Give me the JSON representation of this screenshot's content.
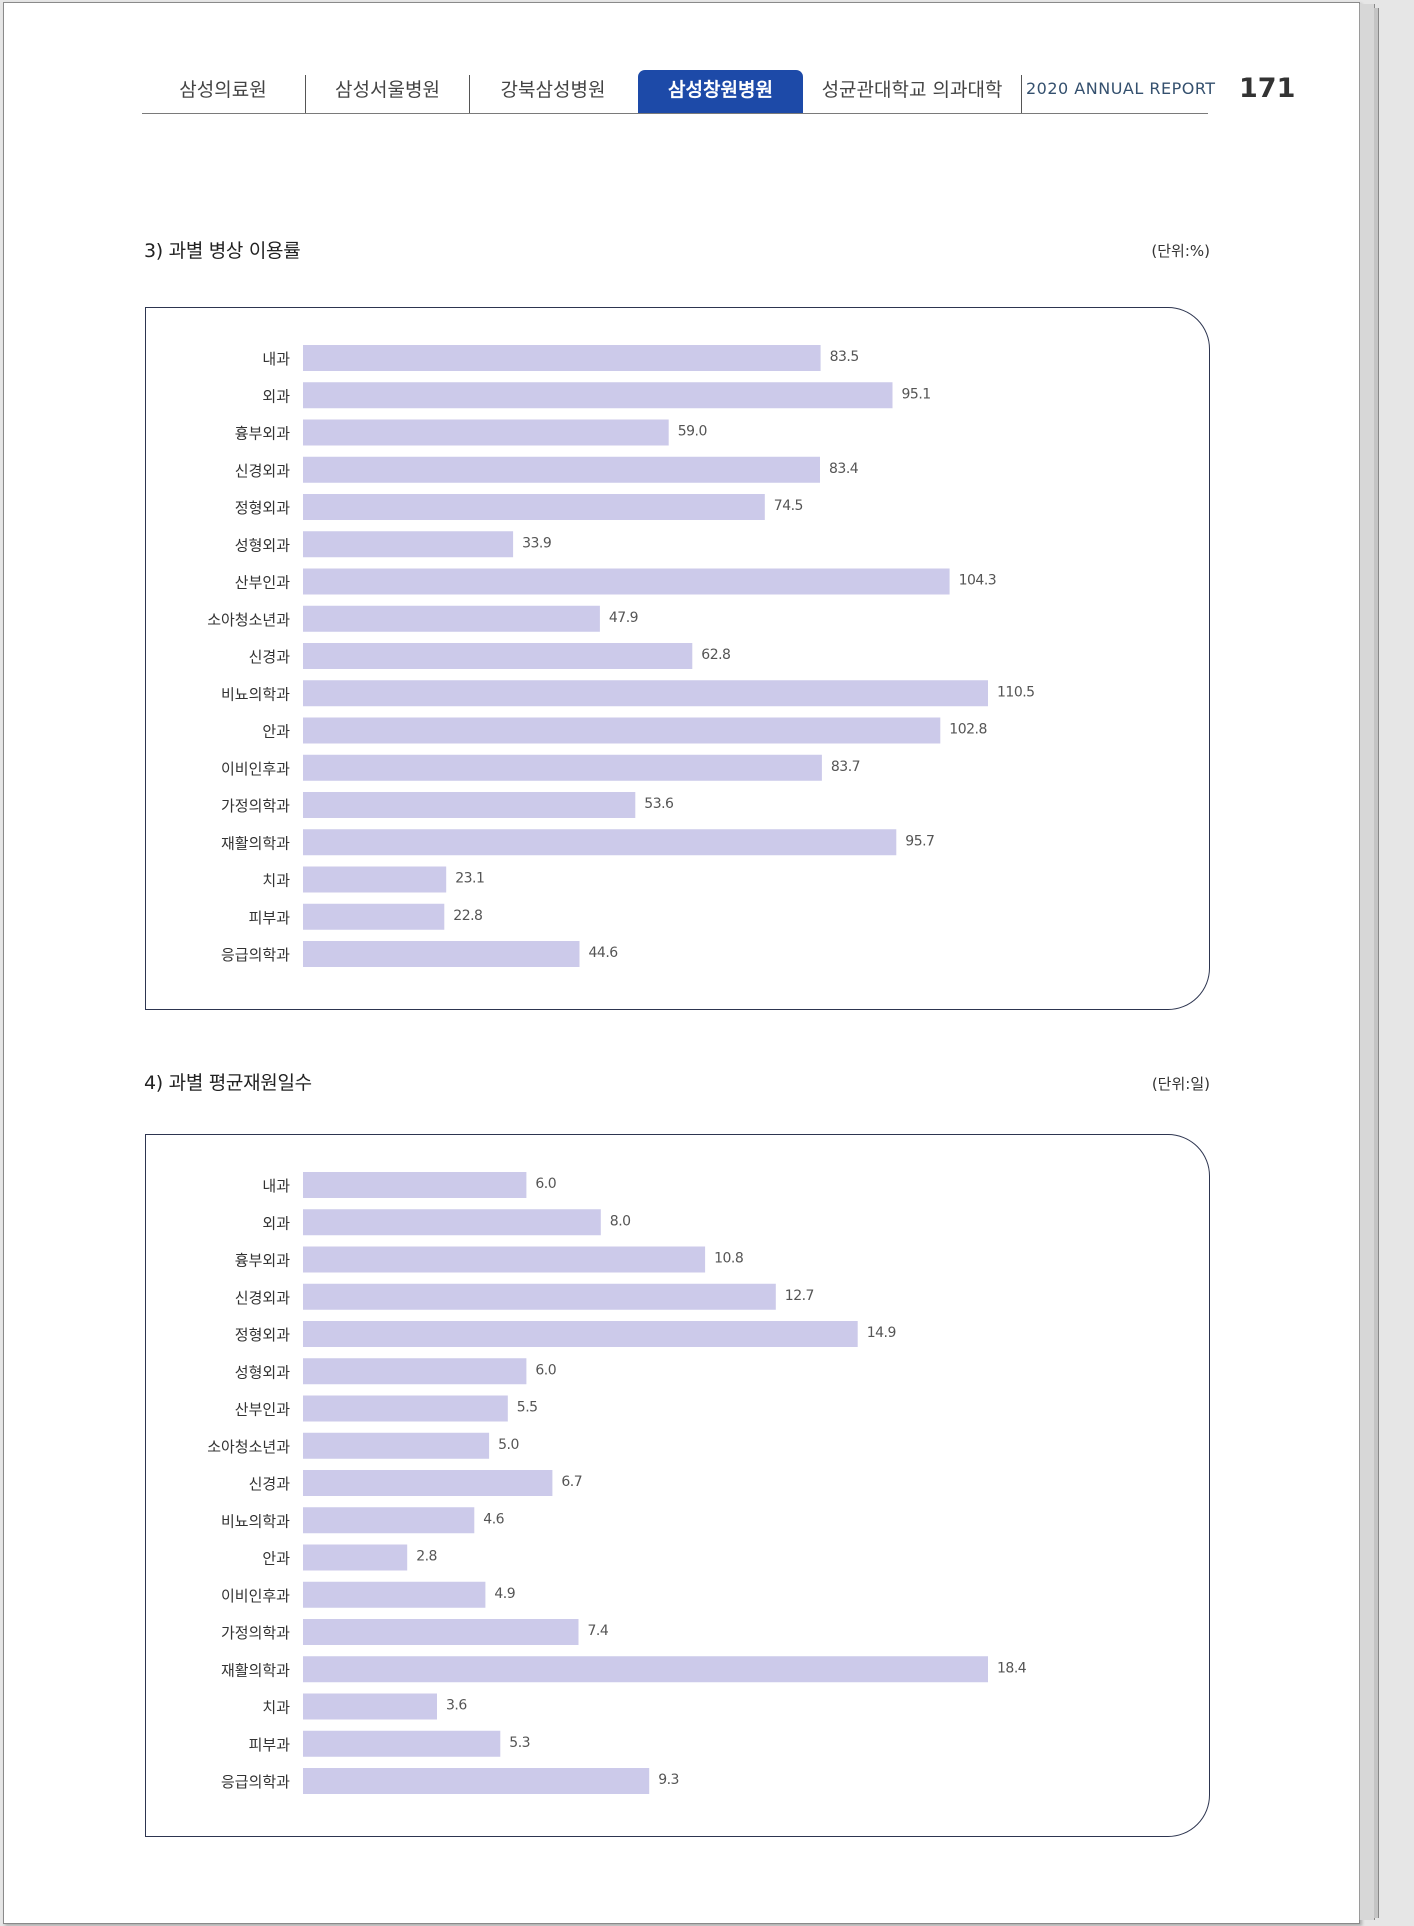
{
  "header": {
    "tabs": [
      {
        "label": "삼성의료원",
        "active": false
      },
      {
        "label": "삼성서울병원",
        "active": false
      },
      {
        "label": "강북삼성병원",
        "active": false
      },
      {
        "label": "삼성창원병원",
        "active": true
      },
      {
        "label": "성균관대학교 의과대학",
        "active": false
      }
    ],
    "report_label": "2020 ANNUAL REPORT",
    "page_number": "171"
  },
  "colors": {
    "bar": "#cccaea",
    "active_tab": "#1d4aa8",
    "box_border": "#2d3550"
  },
  "chart_data": [
    {
      "type": "bar",
      "orientation": "horizontal",
      "title": "3) 과별 병상 이용률",
      "unit": "(단위:%)",
      "categories": [
        "내과",
        "외과",
        "흉부외과",
        "신경외과",
        "정형외과",
        "성형외과",
        "산부인과",
        "소아청소년과",
        "신경과",
        "비뇨의학과",
        "안과",
        "이비인후과",
        "가정의학과",
        "재활의학과",
        "치과",
        "피부과",
        "응급의학과"
      ],
      "values": [
        83.5,
        95.1,
        59.0,
        83.4,
        74.5,
        33.9,
        104.3,
        47.9,
        62.8,
        110.5,
        102.8,
        83.7,
        53.6,
        95.7,
        23.1,
        22.8,
        44.6
      ],
      "labels": [
        "83.5",
        "95.1",
        "59.0",
        "83.4",
        "74.5",
        "33.9",
        "104.3",
        "47.9",
        "62.8",
        "110.5",
        "102.8",
        "83.7",
        "53.6",
        "95.7",
        "23.1",
        "22.8",
        "44.6"
      ],
      "xlim": [
        0,
        110.5
      ],
      "grid": false,
      "legend": "none"
    },
    {
      "type": "bar",
      "orientation": "horizontal",
      "title": "4) 과별 평균재원일수",
      "unit": "(단위:일)",
      "categories": [
        "내과",
        "외과",
        "흉부외과",
        "신경외과",
        "정형외과",
        "성형외과",
        "산부인과",
        "소아청소년과",
        "신경과",
        "비뇨의학과",
        "안과",
        "이비인후과",
        "가정의학과",
        "재활의학과",
        "치과",
        "피부과",
        "응급의학과"
      ],
      "values": [
        6.0,
        8.0,
        10.8,
        12.7,
        14.9,
        6.0,
        5.5,
        5.0,
        6.7,
        4.6,
        2.8,
        4.9,
        7.4,
        18.4,
        3.6,
        5.3,
        9.3
      ],
      "labels": [
        "6.0",
        "8.0",
        "10.8",
        "12.7",
        "14.9",
        "6.0",
        "5.5",
        "5.0",
        "6.7",
        "4.6",
        "2.8",
        "4.9",
        "7.4",
        "18.4",
        "3.6",
        "5.3",
        "9.3"
      ],
      "xlim": [
        0,
        18.4
      ],
      "grid": false,
      "legend": "none"
    }
  ]
}
